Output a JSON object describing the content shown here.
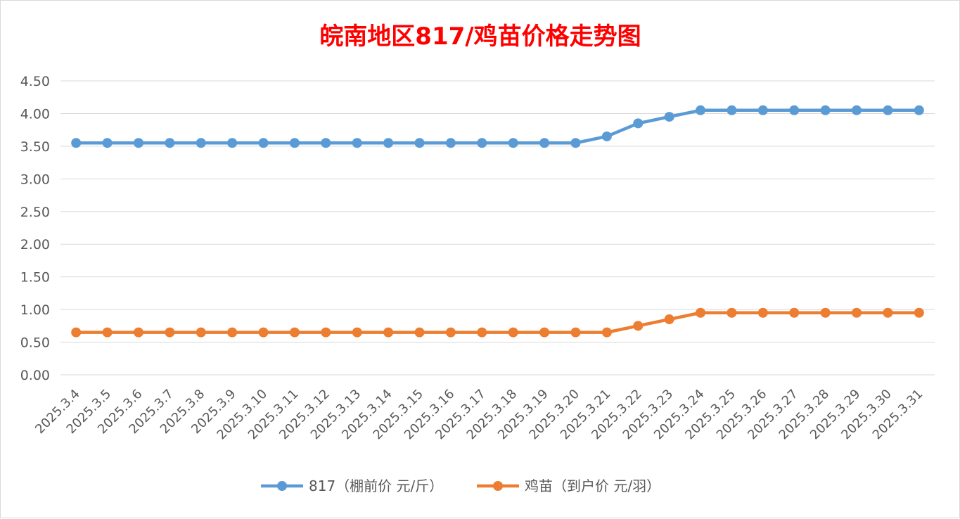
{
  "chart_data": {
    "type": "line",
    "title": "皖南地区817/鸡苗价格走势图",
    "xlabel": "",
    "ylabel": "",
    "ylim": [
      0,
      4.5
    ],
    "yticks": [
      "0.00",
      "0.50",
      "1.00",
      "1.50",
      "2.00",
      "2.50",
      "3.00",
      "3.50",
      "4.00",
      "4.50"
    ],
    "grid": true,
    "legend_position": "bottom",
    "categories": [
      "2025.3.4",
      "2025.3.5",
      "2025.3.6",
      "2025.3.7",
      "2025.3.8",
      "2025.3.9",
      "2025.3.10",
      "2025.3.11",
      "2025.3.12",
      "2025.3.13",
      "2025.3.14",
      "2025.3.15",
      "2025.3.16",
      "2025.3.17",
      "2025.3.18",
      "2025.3.19",
      "2025.3.20",
      "2025.3.21",
      "2025.3.22",
      "2025.3.23",
      "2025.3.24",
      "2025.3.25",
      "2025.3.26",
      "2025.3.27",
      "2025.3.28",
      "2025.3.29",
      "2025.3.30",
      "2025.3.31"
    ],
    "series": [
      {
        "name": "817（棚前价 元/斤）",
        "color": "#5b9bd5",
        "values": [
          3.55,
          3.55,
          3.55,
          3.55,
          3.55,
          3.55,
          3.55,
          3.55,
          3.55,
          3.55,
          3.55,
          3.55,
          3.55,
          3.55,
          3.55,
          3.55,
          3.55,
          3.65,
          3.85,
          3.95,
          4.05,
          4.05,
          4.05,
          4.05,
          4.05,
          4.05,
          4.05,
          4.05
        ]
      },
      {
        "name": "鸡苗（到户价 元/羽）",
        "color": "#ed7d31",
        "values": [
          0.65,
          0.65,
          0.65,
          0.65,
          0.65,
          0.65,
          0.65,
          0.65,
          0.65,
          0.65,
          0.65,
          0.65,
          0.65,
          0.65,
          0.65,
          0.65,
          0.65,
          0.65,
          0.75,
          0.85,
          0.95,
          0.95,
          0.95,
          0.95,
          0.95,
          0.95,
          0.95,
          0.95
        ]
      }
    ]
  }
}
